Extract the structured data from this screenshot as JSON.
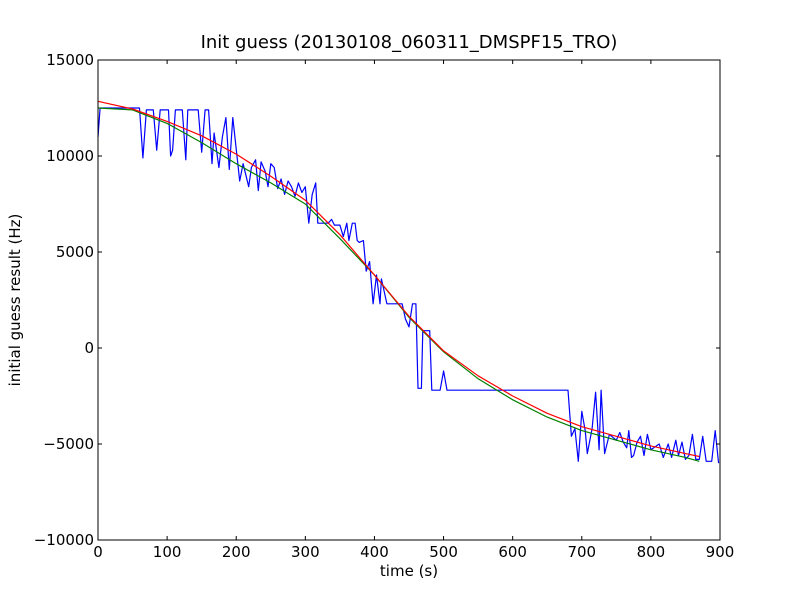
{
  "chart_data": {
    "type": "line",
    "title": "Init guess (20130108_060311_DMSPF15_TRO)",
    "xlabel": "time (s)",
    "ylabel": "initial guess result (Hz)",
    "xlim": [
      0,
      900
    ],
    "ylim": [
      -10000,
      15000
    ],
    "x_ticks": [
      0,
      100,
      200,
      300,
      400,
      500,
      600,
      700,
      800,
      900
    ],
    "y_ticks": [
      -10000,
      -5000,
      0,
      5000,
      10000,
      15000
    ],
    "x_tick_labels": [
      "0",
      "100",
      "200",
      "300",
      "400",
      "500",
      "600",
      "700",
      "800",
      "900"
    ],
    "y_tick_labels": [
      "−10000",
      "−5000",
      "0",
      "5000",
      "10000",
      "15000"
    ],
    "grid": false,
    "legend": "none",
    "series": [
      {
        "color": "#0000ff",
        "points": [
          [
            0,
            11000
          ],
          [
            3,
            12500
          ],
          [
            60,
            12500
          ],
          [
            65,
            9900
          ],
          [
            70,
            12400
          ],
          [
            80,
            12400
          ],
          [
            85,
            10300
          ],
          [
            90,
            12400
          ],
          [
            102,
            12400
          ],
          [
            105,
            10000
          ],
          [
            108,
            10300
          ],
          [
            112,
            12400
          ],
          [
            122,
            12400
          ],
          [
            127,
            9800
          ],
          [
            130,
            12400
          ],
          [
            145,
            12400
          ],
          [
            150,
            10200
          ],
          [
            155,
            12400
          ],
          [
            160,
            12400
          ],
          [
            165,
            9600
          ],
          [
            168,
            11200
          ],
          [
            175,
            9400
          ],
          [
            180,
            11000
          ],
          [
            185,
            12000
          ],
          [
            190,
            9300
          ],
          [
            195,
            12000
          ],
          [
            205,
            8700
          ],
          [
            210,
            9600
          ],
          [
            218,
            8400
          ],
          [
            222,
            9400
          ],
          [
            228,
            9800
          ],
          [
            232,
            8200
          ],
          [
            236,
            9700
          ],
          [
            242,
            9200
          ],
          [
            246,
            8400
          ],
          [
            250,
            9600
          ],
          [
            255,
            9400
          ],
          [
            260,
            8300
          ],
          [
            265,
            8800
          ],
          [
            270,
            8000
          ],
          [
            275,
            8700
          ],
          [
            280,
            8400
          ],
          [
            285,
            7900
          ],
          [
            290,
            8600
          ],
          [
            295,
            8100
          ],
          [
            300,
            8400
          ],
          [
            305,
            6500
          ],
          [
            310,
            8000
          ],
          [
            315,
            8600
          ],
          [
            318,
            6500
          ],
          [
            333,
            6500
          ],
          [
            338,
            6700
          ],
          [
            342,
            6400
          ],
          [
            350,
            6400
          ],
          [
            355,
            5800
          ],
          [
            360,
            6500
          ],
          [
            363,
            5600
          ],
          [
            368,
            6500
          ],
          [
            372,
            6500
          ],
          [
            375,
            5600
          ],
          [
            378,
            5500
          ],
          [
            384,
            5600
          ],
          [
            388,
            4000
          ],
          [
            393,
            4500
          ],
          [
            398,
            2300
          ],
          [
            403,
            3800
          ],
          [
            408,
            2300
          ],
          [
            410,
            3600
          ],
          [
            418,
            2300
          ],
          [
            440,
            2300
          ],
          [
            445,
            1500
          ],
          [
            450,
            1100
          ],
          [
            455,
            2300
          ],
          [
            460,
            2300
          ],
          [
            463,
            -2100
          ],
          [
            468,
            -2100
          ],
          [
            470,
            900
          ],
          [
            480,
            900
          ],
          [
            483,
            -2200
          ],
          [
            495,
            -2200
          ],
          [
            500,
            -1200
          ],
          [
            505,
            -2200
          ],
          [
            560,
            -2200
          ],
          [
            600,
            -2200
          ],
          [
            680,
            -2200
          ],
          [
            685,
            -4600
          ],
          [
            690,
            -4200
          ],
          [
            695,
            -5900
          ],
          [
            700,
            -3300
          ],
          [
            705,
            -4300
          ],
          [
            708,
            -5500
          ],
          [
            715,
            -4200
          ],
          [
            720,
            -2300
          ],
          [
            725,
            -5300
          ],
          [
            728,
            -2200
          ],
          [
            733,
            -5500
          ],
          [
            740,
            -4500
          ],
          [
            750,
            -4800
          ],
          [
            755,
            -4400
          ],
          [
            760,
            -4900
          ],
          [
            765,
            -5200
          ],
          [
            768,
            -4300
          ],
          [
            772,
            -5700
          ],
          [
            775,
            -5600
          ],
          [
            780,
            -4900
          ],
          [
            785,
            -4600
          ],
          [
            790,
            -5600
          ],
          [
            795,
            -4500
          ],
          [
            800,
            -5300
          ],
          [
            808,
            -5100
          ],
          [
            812,
            -5000
          ],
          [
            818,
            -5700
          ],
          [
            825,
            -5000
          ],
          [
            830,
            -5700
          ],
          [
            836,
            -4800
          ],
          [
            840,
            -5600
          ],
          [
            845,
            -4900
          ],
          [
            850,
            -5800
          ],
          [
            855,
            -5600
          ],
          [
            860,
            -4500
          ],
          [
            865,
            -5800
          ],
          [
            870,
            -5800
          ],
          [
            875,
            -4600
          ],
          [
            880,
            -5900
          ],
          [
            888,
            -5900
          ],
          [
            893,
            -4300
          ],
          [
            898,
            -6000
          ]
        ]
      },
      {
        "color": "#008000",
        "points": [
          [
            0,
            12500
          ],
          [
            50,
            12400
          ],
          [
            100,
            11700
          ],
          [
            150,
            10700
          ],
          [
            200,
            9600
          ],
          [
            250,
            8600
          ],
          [
            300,
            7500
          ],
          [
            350,
            5700
          ],
          [
            400,
            3800
          ],
          [
            450,
            1600
          ],
          [
            500,
            -200
          ],
          [
            550,
            -1600
          ],
          [
            600,
            -2700
          ],
          [
            650,
            -3600
          ],
          [
            700,
            -4300
          ],
          [
            750,
            -4800
          ],
          [
            800,
            -5300
          ],
          [
            850,
            -5700
          ],
          [
            870,
            -5900
          ]
        ]
      },
      {
        "color": "#ff0000",
        "points": [
          [
            0,
            12850
          ],
          [
            50,
            12450
          ],
          [
            100,
            11800
          ],
          [
            150,
            11050
          ],
          [
            200,
            10100
          ],
          [
            250,
            8950
          ],
          [
            300,
            7700
          ],
          [
            350,
            5900
          ],
          [
            400,
            3800
          ],
          [
            450,
            1650
          ],
          [
            500,
            -150
          ],
          [
            550,
            -1450
          ],
          [
            600,
            -2500
          ],
          [
            650,
            -3400
          ],
          [
            700,
            -4100
          ],
          [
            750,
            -4600
          ],
          [
            800,
            -5100
          ],
          [
            850,
            -5500
          ],
          [
            870,
            -5650
          ]
        ]
      }
    ]
  }
}
